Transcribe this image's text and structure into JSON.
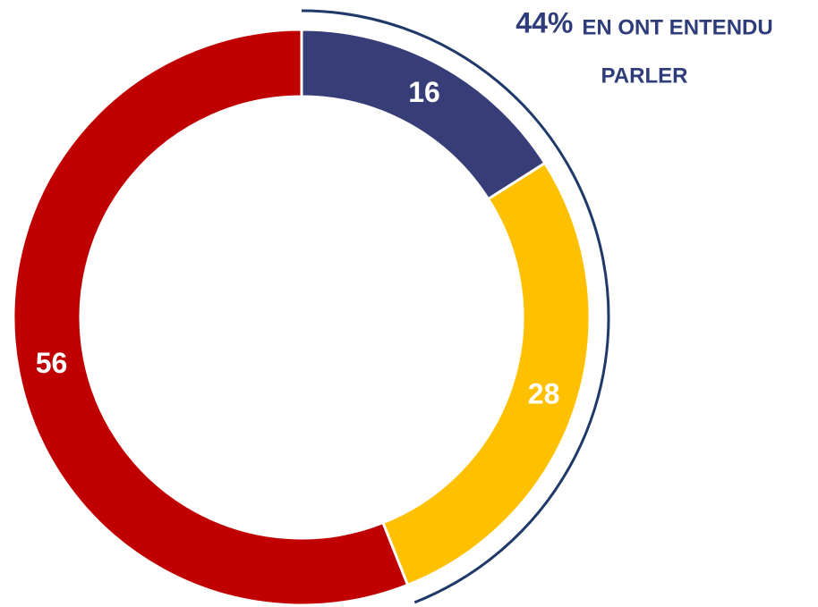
{
  "chart_data": {
    "type": "donut",
    "categories": [
      null,
      null,
      null
    ],
    "values": [
      16,
      28,
      56
    ],
    "colors": [
      "#363d77",
      "#ffc000",
      "#c00000"
    ],
    "annotation": {
      "value_label": "44%",
      "lines": [
        "EN ONT ENTENDU",
        "PARLER"
      ],
      "color": "#2f3c7a"
    }
  }
}
